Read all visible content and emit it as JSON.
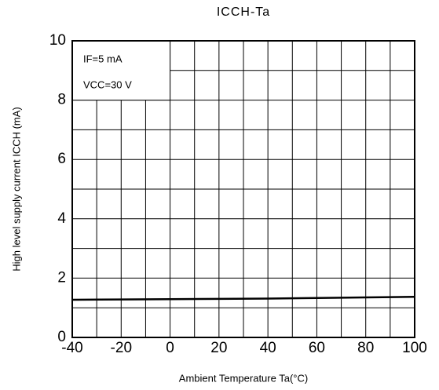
{
  "chart_data": {
    "type": "line",
    "title": "ICCH-Ta",
    "x_label": "Ambient Temperature Ta(°C)",
    "y_label": "High level supply current   ICCH   (mA)",
    "annotations": [
      "IF=5 mA",
      "VCC=30 V"
    ],
    "x": [
      -40,
      -20,
      0,
      20,
      40,
      60,
      80,
      100
    ],
    "series": [
      {
        "name": "ICCH",
        "color": "#000000",
        "values": [
          1.27,
          1.28,
          1.29,
          1.3,
          1.31,
          1.33,
          1.35,
          1.37
        ]
      }
    ],
    "xlim": [
      -40,
      100
    ],
    "ylim": [
      0,
      10
    ],
    "xticks": [
      -40,
      -20,
      0,
      20,
      40,
      60,
      80,
      100
    ],
    "yticks": [
      0,
      2,
      4,
      6,
      8,
      10
    ],
    "xgrid": [
      -30,
      -20,
      -10,
      0,
      10,
      20,
      30,
      40,
      50,
      60,
      70,
      80,
      90
    ],
    "ygrid": [
      1,
      2,
      3,
      4,
      5,
      6,
      7,
      8,
      9
    ],
    "grid": true
  }
}
